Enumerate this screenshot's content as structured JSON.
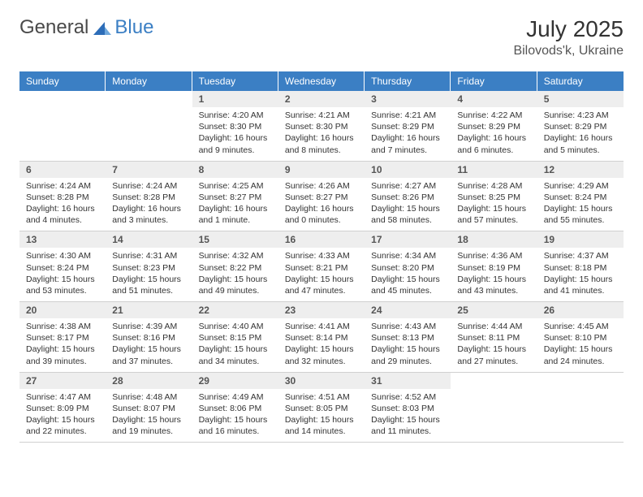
{
  "logo": {
    "part1": "General",
    "part2": "Blue"
  },
  "title": "July 2025",
  "location": "Bilovods'k, Ukraine",
  "colors": {
    "header_bg": "#3b7fc4",
    "header_fg": "#ffffff",
    "daybar_bg": "#eeeeee",
    "grid_line": "#d0d0d0",
    "text": "#333333",
    "logo_gray": "#4a4a4a",
    "logo_blue": "#3b7fc4"
  },
  "weekdays": [
    "Sunday",
    "Monday",
    "Tuesday",
    "Wednesday",
    "Thursday",
    "Friday",
    "Saturday"
  ],
  "leading_blanks": 2,
  "days": [
    {
      "n": 1,
      "sunrise": "4:20 AM",
      "sunset": "8:30 PM",
      "daylight": "16 hours and 9 minutes."
    },
    {
      "n": 2,
      "sunrise": "4:21 AM",
      "sunset": "8:30 PM",
      "daylight": "16 hours and 8 minutes."
    },
    {
      "n": 3,
      "sunrise": "4:21 AM",
      "sunset": "8:29 PM",
      "daylight": "16 hours and 7 minutes."
    },
    {
      "n": 4,
      "sunrise": "4:22 AM",
      "sunset": "8:29 PM",
      "daylight": "16 hours and 6 minutes."
    },
    {
      "n": 5,
      "sunrise": "4:23 AM",
      "sunset": "8:29 PM",
      "daylight": "16 hours and 5 minutes."
    },
    {
      "n": 6,
      "sunrise": "4:24 AM",
      "sunset": "8:28 PM",
      "daylight": "16 hours and 4 minutes."
    },
    {
      "n": 7,
      "sunrise": "4:24 AM",
      "sunset": "8:28 PM",
      "daylight": "16 hours and 3 minutes."
    },
    {
      "n": 8,
      "sunrise": "4:25 AM",
      "sunset": "8:27 PM",
      "daylight": "16 hours and 1 minute."
    },
    {
      "n": 9,
      "sunrise": "4:26 AM",
      "sunset": "8:27 PM",
      "daylight": "16 hours and 0 minutes."
    },
    {
      "n": 10,
      "sunrise": "4:27 AM",
      "sunset": "8:26 PM",
      "daylight": "15 hours and 58 minutes."
    },
    {
      "n": 11,
      "sunrise": "4:28 AM",
      "sunset": "8:25 PM",
      "daylight": "15 hours and 57 minutes."
    },
    {
      "n": 12,
      "sunrise": "4:29 AM",
      "sunset": "8:24 PM",
      "daylight": "15 hours and 55 minutes."
    },
    {
      "n": 13,
      "sunrise": "4:30 AM",
      "sunset": "8:24 PM",
      "daylight": "15 hours and 53 minutes."
    },
    {
      "n": 14,
      "sunrise": "4:31 AM",
      "sunset": "8:23 PM",
      "daylight": "15 hours and 51 minutes."
    },
    {
      "n": 15,
      "sunrise": "4:32 AM",
      "sunset": "8:22 PM",
      "daylight": "15 hours and 49 minutes."
    },
    {
      "n": 16,
      "sunrise": "4:33 AM",
      "sunset": "8:21 PM",
      "daylight": "15 hours and 47 minutes."
    },
    {
      "n": 17,
      "sunrise": "4:34 AM",
      "sunset": "8:20 PM",
      "daylight": "15 hours and 45 minutes."
    },
    {
      "n": 18,
      "sunrise": "4:36 AM",
      "sunset": "8:19 PM",
      "daylight": "15 hours and 43 minutes."
    },
    {
      "n": 19,
      "sunrise": "4:37 AM",
      "sunset": "8:18 PM",
      "daylight": "15 hours and 41 minutes."
    },
    {
      "n": 20,
      "sunrise": "4:38 AM",
      "sunset": "8:17 PM",
      "daylight": "15 hours and 39 minutes."
    },
    {
      "n": 21,
      "sunrise": "4:39 AM",
      "sunset": "8:16 PM",
      "daylight": "15 hours and 37 minutes."
    },
    {
      "n": 22,
      "sunrise": "4:40 AM",
      "sunset": "8:15 PM",
      "daylight": "15 hours and 34 minutes."
    },
    {
      "n": 23,
      "sunrise": "4:41 AM",
      "sunset": "8:14 PM",
      "daylight": "15 hours and 32 minutes."
    },
    {
      "n": 24,
      "sunrise": "4:43 AM",
      "sunset": "8:13 PM",
      "daylight": "15 hours and 29 minutes."
    },
    {
      "n": 25,
      "sunrise": "4:44 AM",
      "sunset": "8:11 PM",
      "daylight": "15 hours and 27 minutes."
    },
    {
      "n": 26,
      "sunrise": "4:45 AM",
      "sunset": "8:10 PM",
      "daylight": "15 hours and 24 minutes."
    },
    {
      "n": 27,
      "sunrise": "4:47 AM",
      "sunset": "8:09 PM",
      "daylight": "15 hours and 22 minutes."
    },
    {
      "n": 28,
      "sunrise": "4:48 AM",
      "sunset": "8:07 PM",
      "daylight": "15 hours and 19 minutes."
    },
    {
      "n": 29,
      "sunrise": "4:49 AM",
      "sunset": "8:06 PM",
      "daylight": "15 hours and 16 minutes."
    },
    {
      "n": 30,
      "sunrise": "4:51 AM",
      "sunset": "8:05 PM",
      "daylight": "15 hours and 14 minutes."
    },
    {
      "n": 31,
      "sunrise": "4:52 AM",
      "sunset": "8:03 PM",
      "daylight": "15 hours and 11 minutes."
    }
  ],
  "labels": {
    "sunrise": "Sunrise: ",
    "sunset": "Sunset: ",
    "daylight": "Daylight: "
  }
}
